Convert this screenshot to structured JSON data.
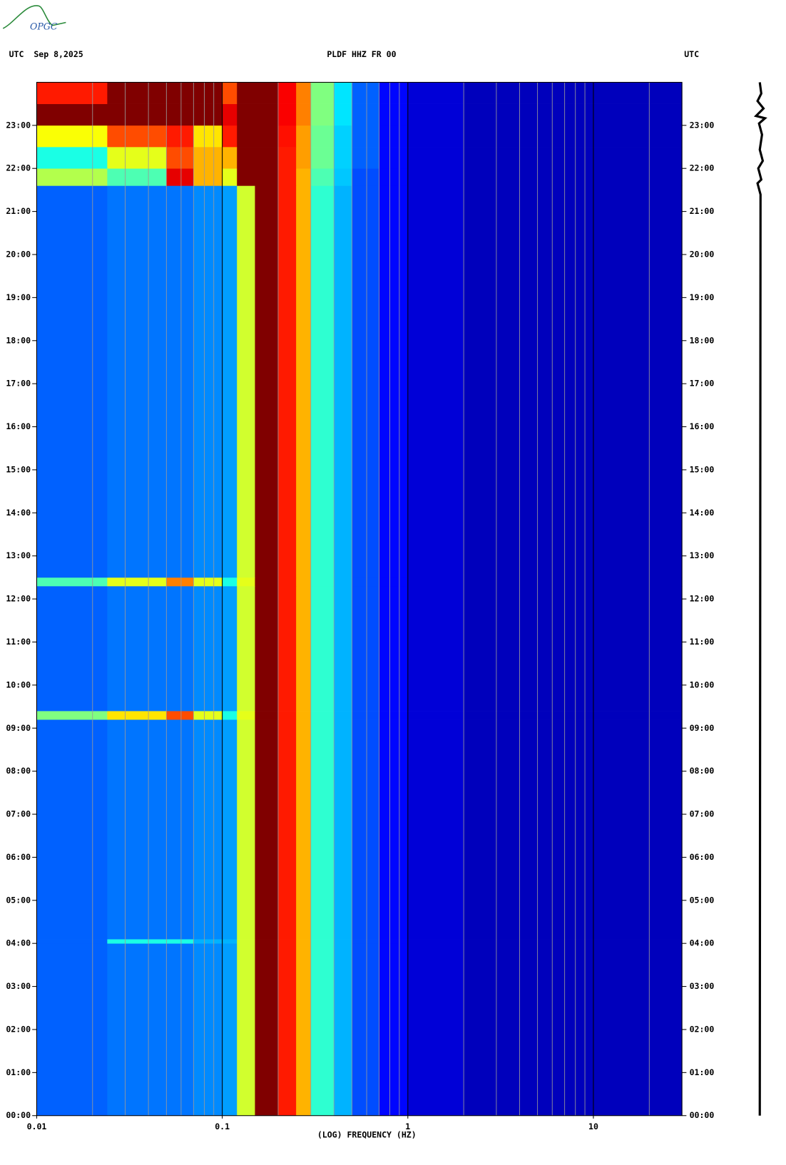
{
  "header": {
    "logo": "OPGC"
  },
  "chart_data": {
    "type": "spectrogram",
    "title": "PLDF HHZ FR 00",
    "date_label": "UTC  Sep 8,2025",
    "right_label": "UTC",
    "xlabel": "(LOG) FREQUENCY (HZ)",
    "xscale": "log",
    "colormap": "jet",
    "xlim": [
      0.01,
      30
    ],
    "xticks": [
      0.01,
      0.1,
      1,
      10
    ],
    "x_minor_ticks": [
      0.02,
      0.03,
      0.04,
      0.05,
      0.06,
      0.07,
      0.08,
      0.09,
      0.2,
      0.3,
      0.4,
      0.5,
      0.6,
      0.7,
      0.8,
      0.9,
      2,
      3,
      4,
      5,
      6,
      7,
      8,
      9,
      20
    ],
    "ylim": [
      0,
      24
    ],
    "yticks": [
      {
        "value": 0,
        "label": "00:00"
      },
      {
        "value": 1,
        "label": "01:00"
      },
      {
        "value": 2,
        "label": "02:00"
      },
      {
        "value": 3,
        "label": "03:00"
      },
      {
        "value": 4,
        "label": "04:00"
      },
      {
        "value": 5,
        "label": "05:00"
      },
      {
        "value": 6,
        "label": "06:00"
      },
      {
        "value": 7,
        "label": "07:00"
      },
      {
        "value": 8,
        "label": "08:00"
      },
      {
        "value": 9,
        "label": "09:00"
      },
      {
        "value": 10,
        "label": "10:00"
      },
      {
        "value": 11,
        "label": "11:00"
      },
      {
        "value": 12,
        "label": "12:00"
      },
      {
        "value": 13,
        "label": "13:00"
      },
      {
        "value": 14,
        "label": "14:00"
      },
      {
        "value": 15,
        "label": "15:00"
      },
      {
        "value": 16,
        "label": "16:00"
      },
      {
        "value": 17,
        "label": "17:00"
      },
      {
        "value": 18,
        "label": "18:00"
      },
      {
        "value": 19,
        "label": "19:00"
      },
      {
        "value": 20,
        "label": "20:00"
      },
      {
        "value": 21,
        "label": "21:00"
      },
      {
        "value": 22,
        "label": "22:00"
      },
      {
        "value": 23,
        "label": "23:00"
      }
    ],
    "x_bins": [
      0.01,
      0.024,
      0.05,
      0.07,
      0.1,
      0.12,
      0.15,
      0.2,
      0.25,
      0.3,
      0.4,
      0.5,
      0.7,
      1,
      2,
      30
    ],
    "y_bins": [
      0,
      4,
      4.1,
      9.2,
      9.4,
      12.3,
      12.5,
      21.6,
      22,
      22.5,
      23,
      23.5,
      24
    ],
    "values": [
      [
        0.22,
        0.24,
        0.24,
        0.26,
        0.28,
        0.58,
        1,
        0.85,
        0.7,
        0.42,
        0.3,
        0.2,
        0.13,
        0.08,
        0.05
      ],
      [
        0.22,
        0.4,
        0.4,
        0.3,
        0.3,
        0.58,
        1,
        0.85,
        0.7,
        0.42,
        0.3,
        0.2,
        0.13,
        0.08,
        0.05
      ],
      [
        0.22,
        0.24,
        0.24,
        0.26,
        0.28,
        0.58,
        1,
        0.85,
        0.7,
        0.42,
        0.3,
        0.2,
        0.13,
        0.08,
        0.05
      ],
      [
        0.5,
        0.65,
        0.8,
        0.6,
        0.4,
        0.6,
        1,
        0.85,
        0.7,
        0.42,
        0.3,
        0.2,
        0.13,
        0.08,
        0.05
      ],
      [
        0.22,
        0.24,
        0.24,
        0.26,
        0.28,
        0.58,
        1,
        0.85,
        0.7,
        0.42,
        0.3,
        0.2,
        0.13,
        0.08,
        0.05
      ],
      [
        0.45,
        0.6,
        0.75,
        0.6,
        0.4,
        0.6,
        1,
        0.85,
        0.7,
        0.42,
        0.3,
        0.2,
        0.13,
        0.08,
        0.05
      ],
      [
        0.22,
        0.24,
        0.24,
        0.26,
        0.28,
        0.58,
        1,
        0.85,
        0.7,
        0.42,
        0.3,
        0.2,
        0.13,
        0.08,
        0.05
      ],
      [
        0.55,
        0.45,
        0.9,
        0.7,
        0.6,
        1,
        1,
        0.85,
        0.7,
        0.45,
        0.32,
        0.2,
        0.13,
        0.08,
        0.05
      ],
      [
        0.4,
        0.6,
        0.8,
        0.7,
        0.7,
        1,
        1,
        0.85,
        0.72,
        0.48,
        0.33,
        0.22,
        0.13,
        0.08,
        0.05
      ],
      [
        0.62,
        0.8,
        0.85,
        0.65,
        0.85,
        1,
        1,
        0.86,
        0.72,
        0.48,
        0.33,
        0.22,
        0.13,
        0.08,
        0.05
      ],
      [
        1,
        1,
        1,
        1,
        0.9,
        1,
        1,
        0.88,
        0.75,
        0.5,
        0.35,
        0.22,
        0.13,
        0.08,
        0.05
      ],
      [
        0.85,
        1,
        1,
        1,
        0.8,
        1,
        1,
        0.88,
        0.75,
        0.5,
        0.35,
        0.22,
        0.13,
        0.08,
        0.05
      ]
    ]
  }
}
